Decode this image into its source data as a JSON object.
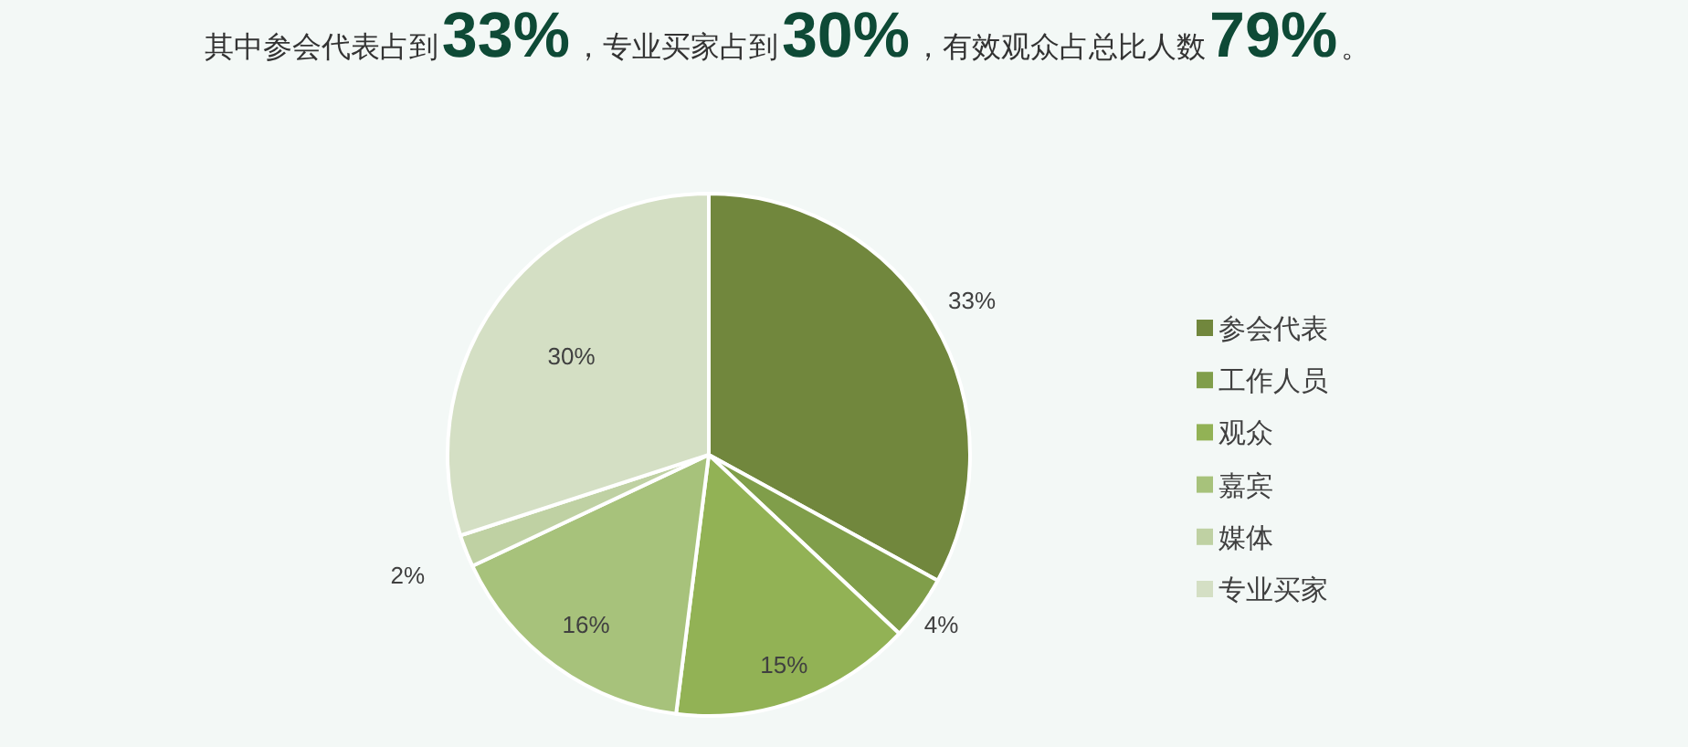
{
  "chart_data": {
    "type": "pie",
    "title": "其中参会代表占到33%，专业买家占到30%，有效观众占总比人数79%。",
    "categories": [
      "参会代表",
      "工作人员",
      "观众",
      "嘉宾",
      "媒体",
      "专业买家"
    ],
    "values": [
      33,
      4,
      15,
      16,
      2,
      30
    ],
    "colors": [
      "#71873d",
      "#809e4a",
      "#92b255",
      "#a7c27b",
      "#bfd1a3",
      "#d4dfc4"
    ],
    "value_labels": [
      "33%",
      "4%",
      "15%",
      "16%",
      "2%",
      "30%"
    ],
    "legend": "right"
  }
}
